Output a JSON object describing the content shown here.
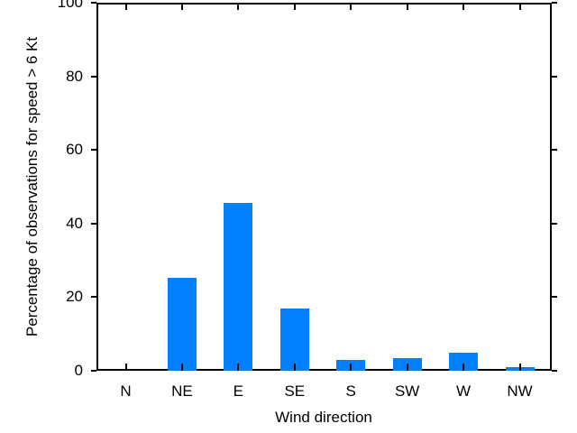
{
  "chart_data": {
    "type": "bar",
    "categories": [
      "N",
      "NE",
      "E",
      "SE",
      "S",
      "SW",
      "W",
      "NW"
    ],
    "values": [
      0,
      25.3,
      45.6,
      17,
      2.9,
      3.4,
      4.9,
      1
    ],
    "title": "",
    "xlabel": "Wind direction",
    "ylabel": "Percentage of observations for speed > 6 Kt",
    "ylim": [
      0,
      100
    ],
    "yticks": [
      0,
      20,
      40,
      60,
      80,
      100
    ],
    "bar_color": "#0080ff",
    "axis_color": "#000000",
    "background": "#ffffff",
    "grid": false,
    "legend_position": "none"
  }
}
